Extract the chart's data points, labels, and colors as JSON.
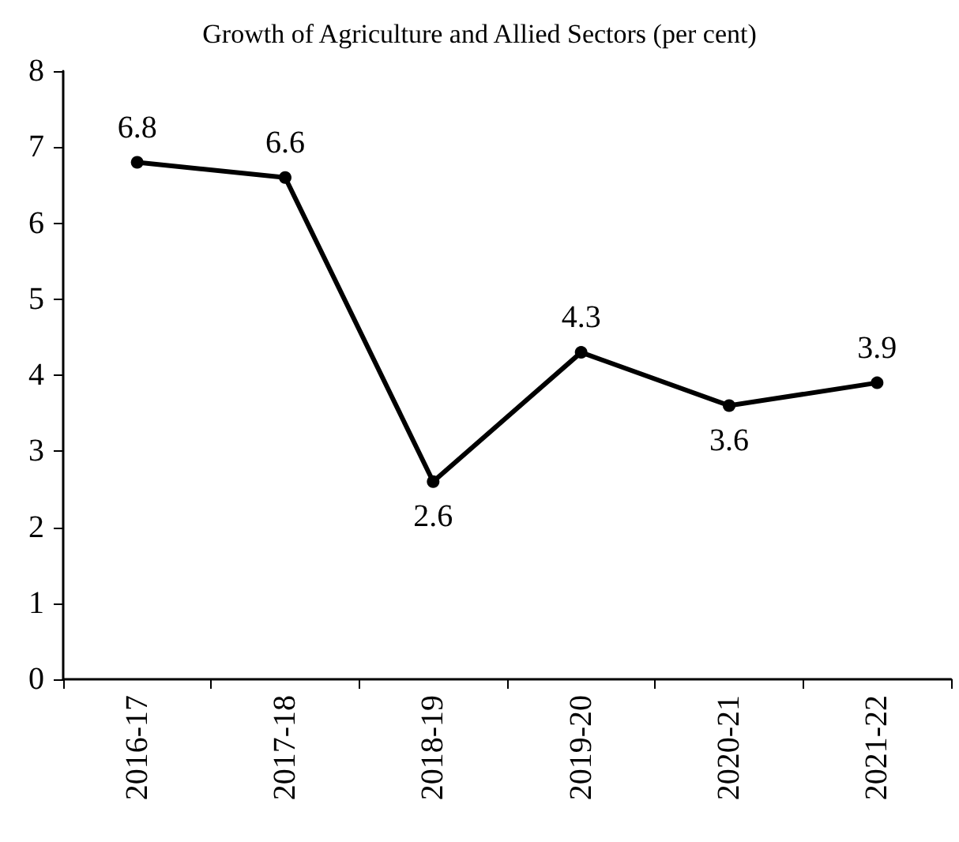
{
  "chart_data": {
    "type": "line",
    "title": "Growth of Agriculture and Allied Sectors (per cent)",
    "categories": [
      "2016-17",
      "2017-18",
      "2018-19",
      "2019-20",
      "2020-21",
      "2021-22"
    ],
    "values": [
      6.8,
      6.6,
      2.6,
      4.3,
      3.6,
      3.9
    ],
    "color": "#000000",
    "ylim": [
      0,
      8
    ],
    "yticks": [
      0,
      1,
      2,
      3,
      4,
      5,
      6,
      7,
      8
    ],
    "grid": false,
    "marker": "circle",
    "line_style": "solid",
    "data_labels": true
  }
}
